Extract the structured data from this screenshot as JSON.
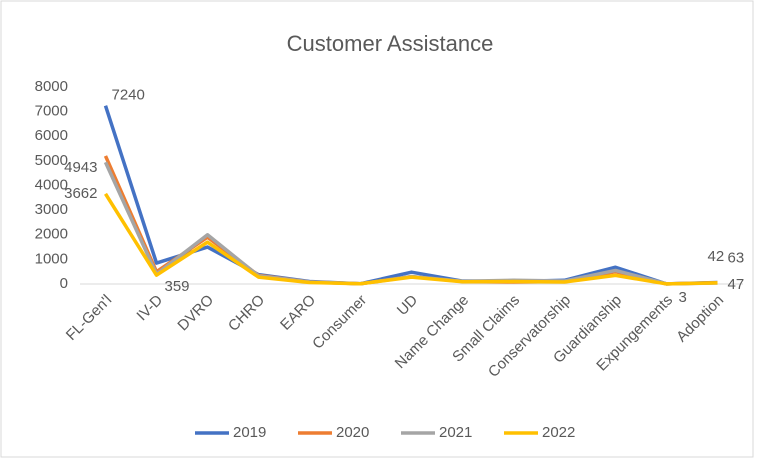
{
  "chart_data": {
    "type": "line",
    "title": "Customer Assistance",
    "categories": [
      "FL-Gen'l",
      "IV-D",
      "DVRO",
      "CHRO",
      "EARO",
      "Consumer",
      "UD",
      "Name Change",
      "Small Claims",
      "Conservatorship",
      "Guardianship",
      "Expungements",
      "Adoption"
    ],
    "series": [
      {
        "name": "2019",
        "color": "#4472c4",
        "values": [
          7240,
          850,
          1500,
          380,
          100,
          10,
          480,
          120,
          100,
          150,
          680,
          5,
          63
        ],
        "value_labels": [
          "7240",
          null,
          null,
          null,
          null,
          null,
          null,
          null,
          null,
          null,
          null,
          null,
          "63"
        ]
      },
      {
        "name": "2020",
        "color": "#ed7d31",
        "values": [
          5200,
          500,
          1900,
          350,
          80,
          10,
          300,
          100,
          80,
          100,
          500,
          5,
          50
        ]
      },
      {
        "name": "2021",
        "color": "#a5a5a5",
        "values": [
          4943,
          400,
          2000,
          330,
          80,
          10,
          300,
          110,
          150,
          120,
          550,
          5,
          42
        ],
        "value_labels": [
          "4943",
          null,
          null,
          null,
          null,
          null,
          null,
          null,
          null,
          null,
          null,
          null,
          "42"
        ]
      },
      {
        "name": "2022",
        "color": "#ffc000",
        "values": [
          3662,
          359,
          1700,
          280,
          60,
          10,
          280,
          90,
          100,
          80,
          350,
          3,
          47
        ],
        "value_labels": [
          "3662",
          "359",
          null,
          null,
          null,
          null,
          null,
          null,
          null,
          null,
          null,
          "3",
          "47"
        ]
      }
    ],
    "ylim": [
      0,
      8000
    ],
    "yticks": [
      0,
      1000,
      2000,
      3000,
      4000,
      5000,
      6000,
      7000,
      8000
    ],
    "grid": false,
    "legend": "bottom"
  }
}
